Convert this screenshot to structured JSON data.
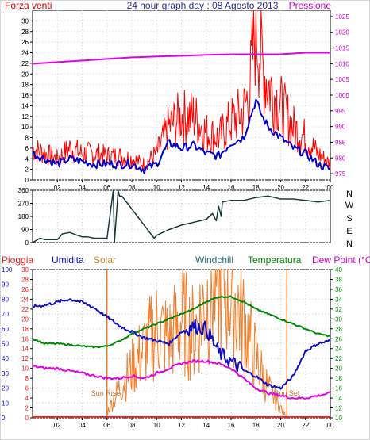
{
  "title": "24 hour graph day : 08 Agosto 2013",
  "colors": {
    "wind_gust": "#ff0000",
    "wind_avg": "#0000cc",
    "pressure": "#e000e0",
    "direction": "#1b3a3a",
    "humidity": "#1010c0",
    "solar": "#f08030",
    "temperature": "#008800",
    "dewpoint": "#e000e0",
    "rain": "#ff2020",
    "grid": "#d0d0d0",
    "panel_bg": "#ffffff",
    "axis": "#000000"
  },
  "time_axis": {
    "ticks": [
      "02",
      "04",
      "06",
      "08",
      "10",
      "12",
      "14",
      "16",
      "18",
      "20",
      "22",
      "00"
    ]
  },
  "panel1": {
    "left_label": "Forza venti",
    "right_label": "Pressione",
    "left_axis": {
      "min": 0,
      "max": 32,
      "ticks": [
        0,
        2,
        4,
        6,
        8,
        10,
        12,
        14,
        16,
        18,
        20,
        22,
        24,
        26,
        28,
        30
      ]
    },
    "right_axis": {
      "min": 973,
      "max": 1027,
      "ticks": [
        975,
        980,
        985,
        990,
        995,
        1000,
        1005,
        1010,
        1015,
        1020,
        1025
      ]
    }
  },
  "panel2": {
    "axis": {
      "min": 0,
      "max": 360,
      "ticks": [
        0,
        90,
        180,
        270,
        360
      ]
    },
    "compass_labels": [
      "N",
      "W",
      "S",
      "E",
      "N"
    ]
  },
  "panel3": {
    "labels": {
      "rain": "Pioggia",
      "humidity": "Umidita",
      "solar": "Solar",
      "windchill": "Windchill",
      "temperature": "Temperatura",
      "dewpoint": "Dew Point (°C)"
    },
    "humidity_axis": {
      "min": 0,
      "max": 100,
      "ticks": [
        0,
        10,
        20,
        30,
        40,
        50,
        60,
        70,
        80,
        90,
        100
      ]
    },
    "solar_axis": {
      "min": 0,
      "max": 30,
      "ticks": [
        0,
        2,
        4,
        6,
        8,
        10,
        12,
        14,
        16,
        18,
        20,
        22,
        24,
        26,
        28,
        30
      ]
    },
    "temp_axis": {
      "min": 10,
      "max": 40,
      "ticks": [
        10,
        12,
        14,
        16,
        18,
        20,
        22,
        24,
        26,
        28,
        30,
        32,
        34,
        36,
        38,
        40
      ]
    },
    "sun_rise_label": "Sun Rise",
    "sun_set_label": "Sun Set"
  },
  "chart_data": [
    {
      "type": "line",
      "title": "24 hour graph day : 08 Agosto 2013",
      "x_unit": "hours",
      "series": [
        {
          "name": "Forza venti",
          "axis": "left",
          "x": [
            0,
            1,
            2,
            3,
            4,
            5,
            6,
            7,
            8,
            9,
            10,
            11,
            12,
            13,
            14,
            15,
            16,
            17,
            18,
            18.5,
            19,
            20,
            21,
            22,
            23,
            24
          ],
          "y": [
            5,
            4,
            3,
            4,
            3.5,
            3,
            3,
            3,
            3,
            2,
            3,
            7,
            6,
            6.5,
            5,
            4.5,
            7,
            8,
            15,
            12,
            10,
            8,
            6,
            5,
            3,
            2
          ]
        },
        {
          "name": "Forza venti (raffica)",
          "axis": "left",
          "x": [
            0,
            1,
            2,
            3,
            4,
            5,
            6,
            7,
            8,
            9,
            10,
            11,
            12,
            13,
            14,
            15,
            16,
            17,
            17.5,
            18,
            18.5,
            19,
            20,
            21,
            22,
            23,
            24
          ],
          "y": [
            6,
            5,
            4,
            6,
            5,
            5,
            4.5,
            4.5,
            4,
            3,
            5,
            10,
            12,
            12,
            9,
            8,
            11,
            13,
            17,
            30,
            22,
            18,
            14,
            10,
            8,
            5,
            3
          ]
        },
        {
          "name": "Pressione",
          "axis": "right",
          "x": [
            0,
            2,
            4,
            6,
            8,
            10,
            12,
            14,
            16,
            18,
            20,
            22,
            24
          ],
          "y": [
            1010,
            1010.5,
            1011,
            1011.5,
            1012,
            1012.3,
            1012.5,
            1012.8,
            1013,
            1013,
            1013,
            1013.5,
            1013.5
          ]
        }
      ],
      "ylim": [
        0,
        32
      ],
      "y2lim": [
        973,
        1027
      ]
    },
    {
      "type": "line",
      "x_unit": "hours",
      "series": [
        {
          "name": "direction",
          "x": [
            0,
            0.6,
            1,
            1.5,
            2,
            2.4,
            3,
            3.6,
            4,
            4.4,
            5,
            6,
            6.5,
            6.6,
            6.9,
            7,
            7.2,
            9.8,
            10,
            11,
            12,
            13,
            14,
            14.5,
            14.8,
            15,
            15.2,
            15.3,
            16,
            17,
            18,
            19,
            20,
            21,
            22,
            23,
            24
          ],
          "y": [
            0,
            30,
            20,
            20,
            20,
            60,
            70,
            50,
            40,
            40,
            30,
            30,
            360,
            0,
            360,
            320,
            320,
            30,
            50,
            90,
            120,
            140,
            160,
            200,
            150,
            250,
            180,
            280,
            290,
            290,
            310,
            320,
            300,
            300,
            290,
            280,
            290
          ]
        }
      ],
      "ylim": [
        0,
        360
      ]
    },
    {
      "type": "line",
      "x_unit": "hours",
      "series": [
        {
          "name": "Umidita",
          "axis": "humidity",
          "x": [
            0,
            1,
            2,
            3,
            4,
            5,
            6,
            7,
            8,
            9,
            10,
            11,
            12,
            13,
            14,
            15,
            16,
            17,
            18,
            19,
            20,
            21,
            22,
            23,
            24
          ],
          "y": [
            75,
            76,
            78,
            80,
            78,
            74,
            68,
            62,
            58,
            54,
            52,
            50,
            58,
            62,
            60,
            44,
            38,
            32,
            28,
            22,
            20,
            28,
            45,
            50,
            52
          ]
        },
        {
          "name": "Solar",
          "axis": "solar",
          "x": [
            6,
            7,
            8,
            9,
            10,
            11,
            12,
            13,
            14,
            15,
            16,
            17,
            18,
            19,
            20,
            20.5
          ],
          "y": [
            1,
            6,
            10,
            14,
            18,
            16,
            20,
            17,
            24,
            28,
            26,
            20,
            12,
            6,
            2,
            0
          ]
        },
        {
          "name": "Temperatura",
          "axis": "temp",
          "x": [
            0,
            1,
            2,
            3,
            4,
            5,
            6,
            7,
            8,
            9,
            10,
            11,
            12,
            13,
            14,
            15,
            16,
            17,
            18,
            19,
            20,
            21,
            22,
            23,
            24
          ],
          "y": [
            26,
            25,
            25,
            24.8,
            24.5,
            24.3,
            24.5,
            25.5,
            27,
            28,
            29,
            30,
            31,
            32,
            33.5,
            34.5,
            34.5,
            33.5,
            32,
            31,
            30,
            29,
            28,
            27,
            26.5
          ]
        },
        {
          "name": "Dew Point (°C)",
          "axis": "temp",
          "x": [
            0,
            1,
            2,
            3,
            4,
            5,
            6,
            7,
            8,
            9,
            10,
            11,
            12,
            13,
            14,
            15,
            16,
            17,
            18,
            19,
            20,
            21,
            22,
            23,
            24
          ],
          "y": [
            20.5,
            20,
            20,
            19.5,
            19,
            18.5,
            18,
            18,
            18.5,
            18,
            19,
            20,
            21,
            21.5,
            21.5,
            21,
            20,
            18,
            16,
            15,
            14.5,
            14,
            14,
            14.5,
            15
          ]
        },
        {
          "name": "Pioggia",
          "axis": "solar",
          "x": [
            0,
            24
          ],
          "y": [
            0,
            0
          ]
        }
      ],
      "annotations": [
        "Sun Rise",
        "Sun Set"
      ],
      "sun_rise_hour": 6,
      "sun_set_hour": 20.5
    }
  ]
}
